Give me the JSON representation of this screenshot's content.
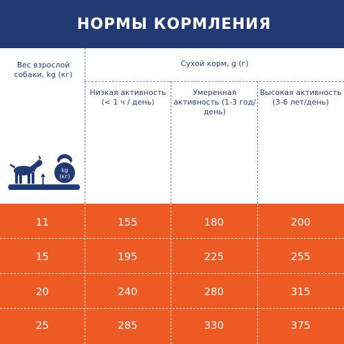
{
  "header": {
    "title": "НОРМЫ КОРМЛЕНИЯ"
  },
  "table": {
    "weight_header": "Вес взрослой собаки, kg (кг)",
    "dry_food_header": "Сухой корм, g (г)",
    "activity_columns": [
      {
        "label": "Низкая активность (< 1 ч / день)"
      },
      {
        "label": "Умеренная активность (1-3 год/день)"
      },
      {
        "label": "Высокая активность (3-6 лет/день)"
      }
    ],
    "icon_labels": {
      "kettlebell": "kg (кг)"
    },
    "rows": [
      {
        "weight": "11",
        "low": "155",
        "moderate": "180",
        "high": "200"
      },
      {
        "weight": "15",
        "low": "195",
        "moderate": "225",
        "high": "255"
      },
      {
        "weight": "20",
        "low": "240",
        "moderate": "280",
        "high": "315"
      },
      {
        "weight": "25",
        "low": "285",
        "moderate": "330",
        "high": "375"
      }
    ]
  },
  "colors": {
    "navy": "#213a73",
    "orange": "#ee5a24",
    "white": "#ffffff"
  },
  "icons": {
    "dog": "dog-silhouette-icon",
    "kettlebell": "kettlebell-icon",
    "scale": "weighing-scale-icon"
  }
}
